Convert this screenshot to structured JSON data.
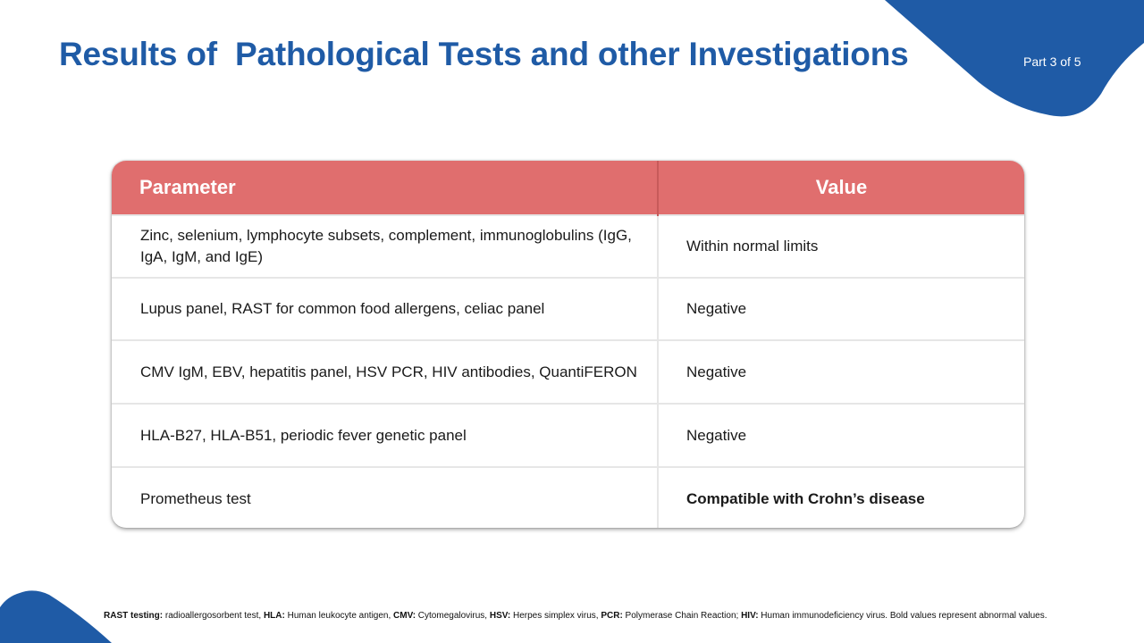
{
  "slide": {
    "title": "Results of  Pathological Tests and other Investigations",
    "part": "Part 3 of 5"
  },
  "colors": {
    "title": "#1f5ba6",
    "accent_blue": "#1f5ba6",
    "header_red": "#e06e6e"
  },
  "table": {
    "headers": [
      "Parameter",
      "Value"
    ],
    "rows": [
      {
        "parameter": "Zinc, selenium, lymphocyte subsets, complement, immunoglobulins (IgG, IgA, IgM, and IgE)",
        "value": "Within normal limits",
        "abnormal": false
      },
      {
        "parameter": "Lupus panel, RAST for common food allergens, celiac panel",
        "value": "Negative",
        "abnormal": false
      },
      {
        "parameter": "CMV IgM, EBV, hepatitis panel, HSV PCR, HIV antibodies, QuantiFERON",
        "value": "Negative",
        "abnormal": false
      },
      {
        "parameter": "HLA-B27, HLA-B51, periodic fever genetic panel",
        "value": "Negative",
        "abnormal": false
      },
      {
        "parameter": "Prometheus test",
        "value": "Compatible with Crohn’s disease",
        "abnormal": true
      }
    ]
  },
  "footnote": {
    "items": [
      {
        "term": "RAST testing:",
        "definition": " radioallergosorbent test, "
      },
      {
        "term": "HLA:",
        "definition": " Human leukocyte antigen, "
      },
      {
        "term": "CMV:",
        "definition": " Cytomegalovirus, "
      },
      {
        "term": "HSV:",
        "definition": " Herpes simplex virus, "
      },
      {
        "term": "PCR:",
        "definition": " Polymerase Chain Reaction; "
      },
      {
        "term": "HIV:",
        "definition": " Human immunodeficiency virus. "
      }
    ],
    "tail": "Bold values represent abnormal values."
  }
}
